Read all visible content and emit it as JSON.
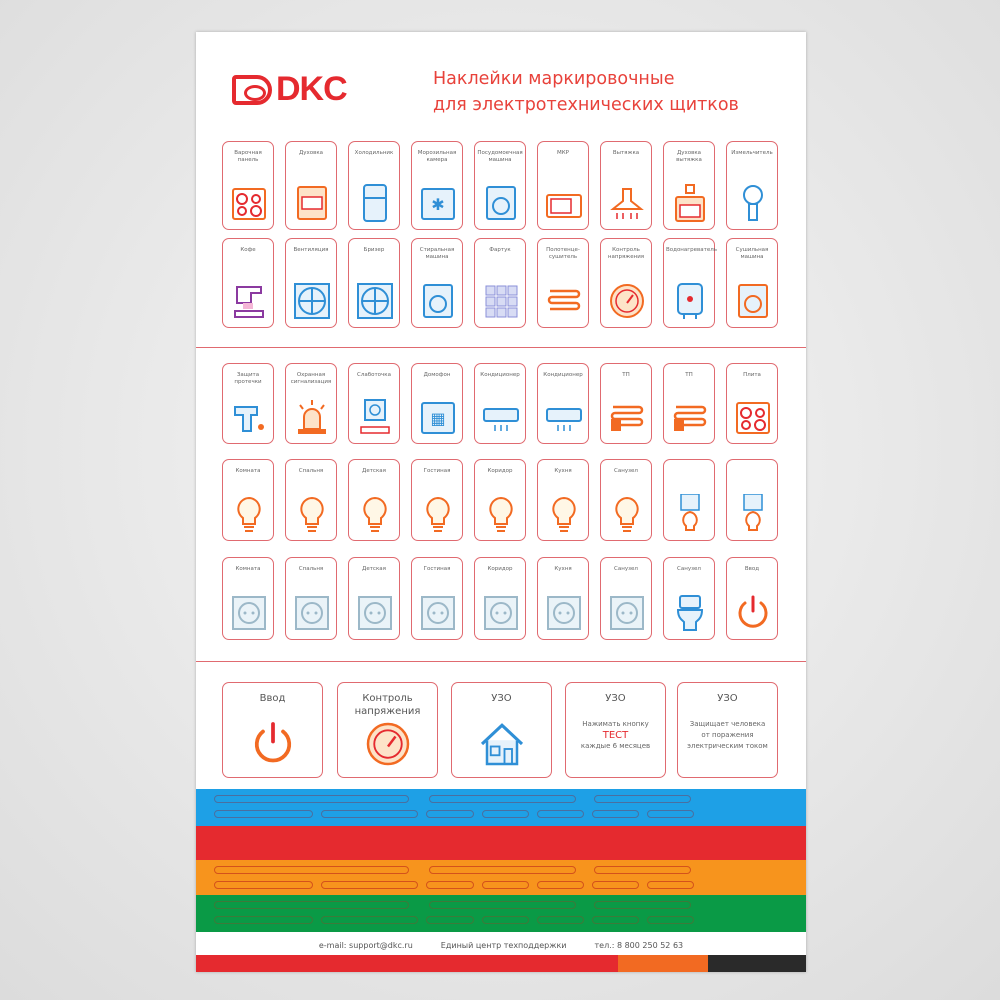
{
  "brand": {
    "logo": "DKC",
    "title_line1": "Наклейки маркировочные",
    "title_line2": "для электротехнических щитков"
  },
  "colors": {
    "red": "#e52a2f",
    "orange": "#f7941d",
    "blue": "#1ea0e6",
    "green": "#0a9a46",
    "dark": "#2a2a2a"
  },
  "grid": [
    [
      {
        "label": "Варочная панель",
        "icon": "hob"
      },
      {
        "label": "Духовка",
        "icon": "oven"
      },
      {
        "label": "Холодильник",
        "icon": "fridge"
      },
      {
        "label": "Морозильная камера",
        "icon": "freezer"
      },
      {
        "label": "Посудомоечная машина",
        "icon": "dishwasher"
      },
      {
        "label": "МКР",
        "icon": "microwave"
      },
      {
        "label": "Вытяжка",
        "icon": "hood"
      },
      {
        "label": "Духовка вытяжка",
        "icon": "oven-hood"
      },
      {
        "label": "Измельчитель",
        "icon": "grinder"
      }
    ],
    [
      {
        "label": "Кофе",
        "icon": "coffee"
      },
      {
        "label": "Вентиляция",
        "icon": "fan"
      },
      {
        "label": "Бризер",
        "icon": "breezer"
      },
      {
        "label": "Стиральная машина",
        "icon": "washer"
      },
      {
        "label": "Фартук",
        "icon": "tiles"
      },
      {
        "label": "Полотенце-сушитель",
        "icon": "towel-rail"
      },
      {
        "label": "Контроль напряжения",
        "icon": "gauge"
      },
      {
        "label": "Водонагреватель",
        "icon": "water-heater"
      },
      {
        "label": "Сушильная машина",
        "icon": "dryer"
      }
    ],
    [
      {
        "label": "Защита протечки",
        "icon": "faucet"
      },
      {
        "label": "Охранная сигнализация",
        "icon": "siren"
      },
      {
        "label": "Слаботочка",
        "icon": "socket-router"
      },
      {
        "label": "Домофон",
        "icon": "intercom"
      },
      {
        "label": "Кондиционер",
        "icon": "ac"
      },
      {
        "label": "Кондиционер",
        "icon": "ac"
      },
      {
        "label": "ТП",
        "icon": "heated-floor"
      },
      {
        "label": "ТП",
        "icon": "heated-floor"
      },
      {
        "label": "Плита",
        "icon": "hob"
      }
    ],
    [
      {
        "label": "Комната",
        "icon": "bulb"
      },
      {
        "label": "Спальня",
        "icon": "bulb"
      },
      {
        "label": "Детская",
        "icon": "bulb"
      },
      {
        "label": "Гостиная",
        "icon": "bulb"
      },
      {
        "label": "Коридор",
        "icon": "bulb"
      },
      {
        "label": "Кухня",
        "icon": "bulb"
      },
      {
        "label": "Санузел",
        "icon": "bulb"
      },
      {
        "label": "",
        "icon": "socket-bulb"
      },
      {
        "label": "",
        "icon": "socket-bulb"
      }
    ],
    [
      {
        "label": "Комната",
        "icon": "socket"
      },
      {
        "label": "Спальня",
        "icon": "socket"
      },
      {
        "label": "Детская",
        "icon": "socket"
      },
      {
        "label": "Гостиная",
        "icon": "socket"
      },
      {
        "label": "Коридор",
        "icon": "socket"
      },
      {
        "label": "Кухня",
        "icon": "socket"
      },
      {
        "label": "Санузел",
        "icon": "socket"
      },
      {
        "label": "Санузел",
        "icon": "toilet"
      },
      {
        "label": "Ввод",
        "icon": "power"
      }
    ]
  ],
  "big_cards": [
    {
      "title": "Ввод",
      "icon": "power"
    },
    {
      "title": "Контроль напряжения",
      "icon": "gauge"
    },
    {
      "title": "УЗО",
      "icon": "house"
    },
    {
      "title": "УЗО",
      "text1": "Нажимать кнопку",
      "emph": "ТЕСТ",
      "text2": "каждые 6 месяцев"
    },
    {
      "title": "УЗО",
      "text1": "Защищает человека",
      "text2": "от поражения",
      "text3": "электрическим током"
    }
  ],
  "footer": {
    "email": "e-mail: support@dkc.ru",
    "center": "Единый центр техподдержки",
    "phone": "тел.: 8 800 250 52 63"
  }
}
